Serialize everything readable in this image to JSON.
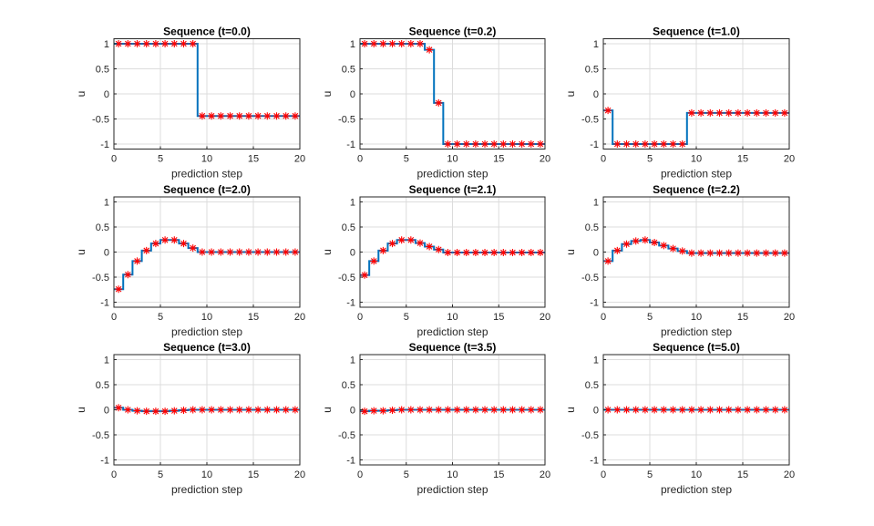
{
  "chart_data": [
    {
      "type": "line",
      "style": "stairs with star markers",
      "title": "Sequence (t=0.0)",
      "xlabel": "prediction step",
      "ylabel": "u",
      "xlim": [
        0,
        20
      ],
      "ylim": [
        -1.1,
        1.1
      ],
      "grid": true,
      "values": [
        1,
        1,
        1,
        1,
        1,
        1,
        1,
        1,
        1,
        -0.44,
        -0.44,
        -0.44,
        -0.44,
        -0.44,
        -0.44,
        -0.44,
        -0.44,
        -0.44,
        -0.44,
        -0.44
      ]
    },
    {
      "type": "line",
      "style": "stairs with star markers",
      "title": "Sequence (t=0.2)",
      "xlabel": "prediction step",
      "ylabel": "u",
      "xlim": [
        0,
        20
      ],
      "ylim": [
        -1.1,
        1.1
      ],
      "grid": true,
      "values": [
        1,
        1,
        1,
        1,
        1,
        1,
        1,
        0.88,
        -0.18,
        -1,
        -1,
        -1,
        -1,
        -1,
        -1,
        -1,
        -1,
        -1,
        -1,
        -1
      ]
    },
    {
      "type": "line",
      "style": "stairs with star markers",
      "title": "Sequence (t=1.0)",
      "xlabel": "prediction step",
      "ylabel": "u",
      "xlim": [
        0,
        20
      ],
      "ylim": [
        -1.1,
        1.1
      ],
      "grid": true,
      "values": [
        -0.33,
        -1,
        -1,
        -1,
        -1,
        -1,
        -1,
        -1,
        -1,
        -0.38,
        -0.38,
        -0.38,
        -0.38,
        -0.38,
        -0.38,
        -0.38,
        -0.38,
        -0.38,
        -0.38,
        -0.38
      ]
    },
    {
      "type": "line",
      "style": "stairs with star markers",
      "title": "Sequence (t=2.0)",
      "xlabel": "prediction step",
      "ylabel": "u",
      "xlim": [
        0,
        20
      ],
      "ylim": [
        -1.1,
        1.1
      ],
      "grid": true,
      "values": [
        -0.74,
        -0.45,
        -0.18,
        0.03,
        0.17,
        0.24,
        0.24,
        0.17,
        0.08,
        0,
        0,
        0,
        0,
        0,
        0,
        0,
        0,
        0,
        0,
        0
      ]
    },
    {
      "type": "line",
      "style": "stairs with star markers",
      "title": "Sequence (t=2.1)",
      "xlabel": "prediction step",
      "ylabel": "u",
      "xlim": [
        0,
        20
      ],
      "ylim": [
        -1.1,
        1.1
      ],
      "grid": true,
      "values": [
        -0.46,
        -0.18,
        0.03,
        0.17,
        0.24,
        0.24,
        0.18,
        0.11,
        0.05,
        -0.01,
        -0.01,
        -0.01,
        -0.01,
        -0.01,
        -0.01,
        -0.01,
        -0.01,
        -0.01,
        -0.01,
        -0.01
      ]
    },
    {
      "type": "line",
      "style": "stairs with star markers",
      "title": "Sequence (t=2.2)",
      "xlabel": "prediction step",
      "ylabel": "u",
      "xlim": [
        0,
        20
      ],
      "ylim": [
        -1.1,
        1.1
      ],
      "grid": true,
      "values": [
        -0.18,
        0.03,
        0.16,
        0.22,
        0.24,
        0.19,
        0.13,
        0.07,
        0.02,
        -0.02,
        -0.02,
        -0.02,
        -0.02,
        -0.02,
        -0.02,
        -0.02,
        -0.02,
        -0.02,
        -0.02,
        -0.02
      ]
    },
    {
      "type": "line",
      "style": "stairs with star markers",
      "title": "Sequence (t=3.0)",
      "xlabel": "prediction step",
      "ylabel": "u",
      "xlim": [
        0,
        20
      ],
      "ylim": [
        -1.1,
        1.1
      ],
      "grid": true,
      "values": [
        0.04,
        0,
        -0.02,
        -0.03,
        -0.03,
        -0.03,
        -0.02,
        -0.01,
        0,
        0,
        0,
        0,
        0,
        0,
        0,
        0,
        0,
        0,
        0,
        0
      ]
    },
    {
      "type": "line",
      "style": "stairs with star markers",
      "title": "Sequence (t=3.5)",
      "xlabel": "prediction step",
      "ylabel": "u",
      "xlim": [
        0,
        20
      ],
      "ylim": [
        -1.1,
        1.1
      ],
      "grid": true,
      "values": [
        -0.03,
        -0.02,
        -0.02,
        -0.01,
        0,
        0,
        0,
        0,
        0,
        0,
        0,
        0,
        0,
        0,
        0,
        0,
        0,
        0,
        0,
        0
      ]
    },
    {
      "type": "line",
      "style": "stairs with star markers",
      "title": "Sequence (t=5.0)",
      "xlabel": "prediction step",
      "ylabel": "u",
      "xlim": [
        0,
        20
      ],
      "ylim": [
        -1.1,
        1.1
      ],
      "grid": true,
      "values": [
        0,
        0,
        0,
        0,
        0,
        0,
        0,
        0,
        0,
        0,
        0,
        0,
        0,
        0,
        0,
        0,
        0,
        0,
        0,
        0
      ]
    }
  ],
  "axes": {
    "xticks": [
      0,
      5,
      10,
      15,
      20
    ],
    "xtick_labels": [
      "0",
      "5",
      "10",
      "15",
      "20"
    ],
    "yticks": [
      1,
      0.5,
      0,
      -0.5,
      -1
    ],
    "ytick_labels": [
      "1",
      "0.5",
      "0",
      "-0.5",
      "-1"
    ]
  },
  "colors": {
    "line": "#0072bd",
    "marker": "#ff0000",
    "grid": "#dcdcdc",
    "axis": "#262626"
  }
}
